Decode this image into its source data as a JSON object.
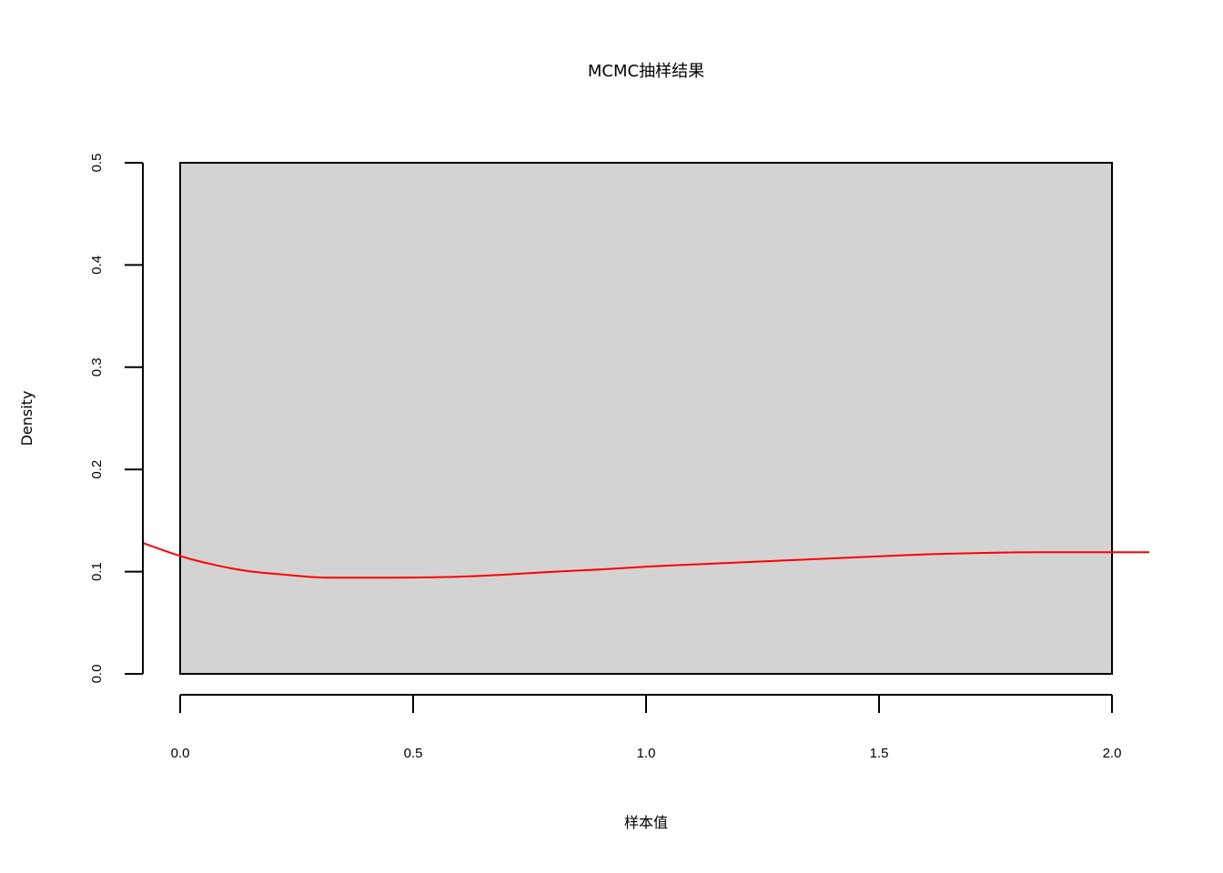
{
  "chart_data": {
    "type": "histogram",
    "title": "MCMC抽样结果",
    "xlabel": "样本值",
    "ylabel": "Density",
    "xlim": [
      0.0,
      2.0
    ],
    "ylim": [
      0.0,
      0.5
    ],
    "x_ticks": [
      "0.0",
      "0.5",
      "1.0",
      "1.5",
      "2.0"
    ],
    "y_ticks": [
      "0.0",
      "0.1",
      "0.2",
      "0.3",
      "0.4",
      "0.5"
    ],
    "grid": false,
    "bars": [
      {
        "x0": 0.0,
        "x1": 2.0,
        "density": 0.5,
        "fill": "#d3d3d3"
      }
    ],
    "density_curve": {
      "color": "#ff0000",
      "x": [
        -0.08,
        0.0,
        0.05,
        0.1,
        0.15,
        0.2,
        0.25,
        0.3,
        0.4,
        0.5,
        0.6,
        0.7,
        0.8,
        0.9,
        1.0,
        1.1,
        1.2,
        1.3,
        1.4,
        1.5,
        1.6,
        1.7,
        1.8,
        1.9,
        2.0,
        2.08
      ],
      "y": [
        0.128,
        0.115,
        0.109,
        0.104,
        0.1,
        0.098,
        0.096,
        0.094,
        0.094,
        0.094,
        0.095,
        0.097,
        0.1,
        0.102,
        0.105,
        0.107,
        0.109,
        0.111,
        0.113,
        0.115,
        0.117,
        0.118,
        0.119,
        0.119,
        0.119,
        0.119
      ]
    }
  }
}
